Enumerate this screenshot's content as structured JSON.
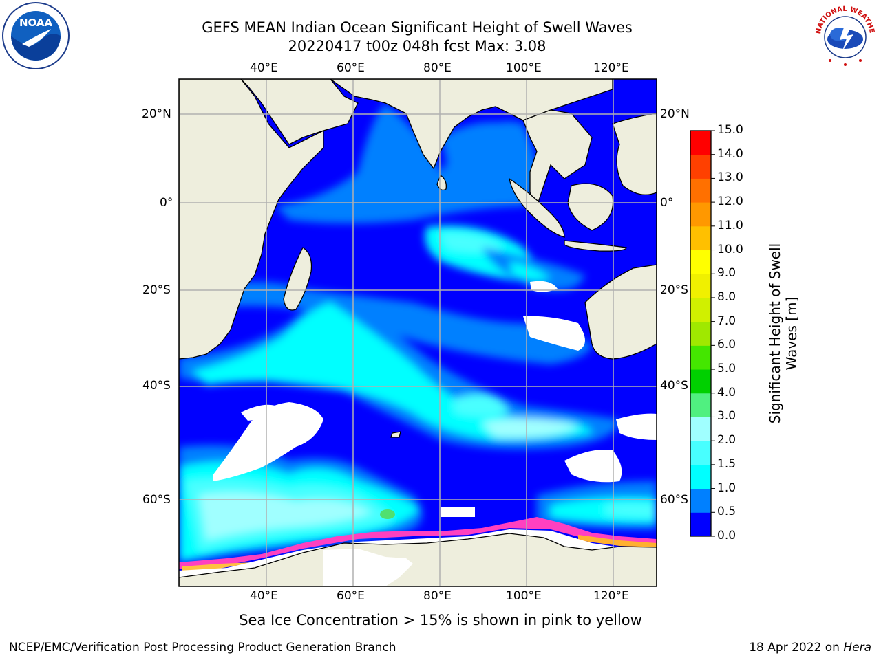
{
  "header": {
    "title_line1": "GEFS MEAN Indian Ocean Significant Height of Swell Waves",
    "title_line2": "20220417 t00z 048h fcst   Max: 3.08"
  },
  "logos": {
    "noaa_text": "NOAA",
    "noaa_ring_text": "NATIONAL OCEANIC AND ATMOSPHERIC ADMINISTRATION · U.S. DEPARTMENT OF COMMERCE",
    "nws_ring_text": "NATIONAL WEATHER SERVICE"
  },
  "map": {
    "lon_ticks": [
      "40°E",
      "60°E",
      "80°E",
      "100°E",
      "120°E"
    ],
    "lat_ticks": [
      "20°N",
      "0°",
      "20°S",
      "40°S",
      "60°S"
    ],
    "lon_range": [
      20,
      130
    ],
    "lat_range": [
      -74,
      28
    ],
    "colors": {
      "land": "#eeeedd",
      "ocean_0_05": "#0000ff",
      "ocean_05_10": "#0080ff",
      "ocean_10_15": "#00ffff",
      "ocean_15_20": "#48ffff",
      "ocean_20_30": "#a0ffff",
      "ice": "#ffffff",
      "grid": "#b0b0b0"
    }
  },
  "colorbar": {
    "label_line1": "Significant Height of Swell",
    "label_line2": "Waves [m]",
    "levels": [
      "0.0",
      "0.5",
      "1.0",
      "1.5",
      "2.0",
      "3.0",
      "4.0",
      "5.0",
      "6.0",
      "7.0",
      "8.0",
      "9.0",
      "10.0",
      "11.0",
      "12.0",
      "13.0",
      "14.0",
      "15.0"
    ],
    "colors": [
      "#0000ff",
      "#0080ff",
      "#00ffff",
      "#48ffff",
      "#a0ffff",
      "#50f080",
      "#00d000",
      "#44e600",
      "#a0e800",
      "#d0f000",
      "#f0f000",
      "#ffff00",
      "#ffc000",
      "#ff9800",
      "#ff7000",
      "#ff4000",
      "#ff0000"
    ]
  },
  "note": "Sea Ice Concentration > 15% is shown in pink to yellow",
  "footer": {
    "left": "NCEP/EMC/Verification Post Processing Product Generation Branch",
    "right_date": "18 Apr 2022 on ",
    "right_host": "Hera"
  }
}
